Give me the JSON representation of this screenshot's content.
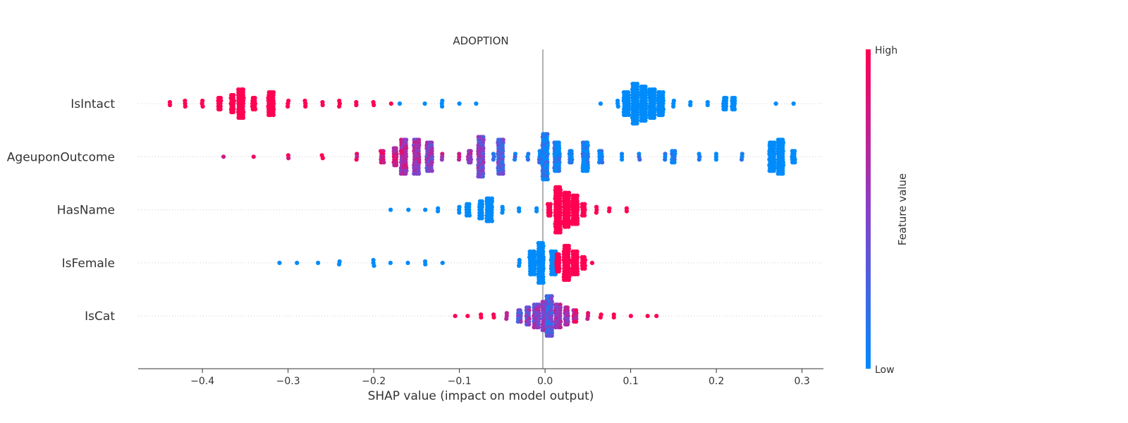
{
  "chart_data": {
    "type": "scatter",
    "subtype": "beeswarm",
    "title": "ADOPTION",
    "xlabel": "SHAP value (impact on model output)",
    "xlim": [
      -0.475,
      0.325
    ],
    "xticks": [
      -0.4,
      -0.3,
      -0.2,
      -0.1,
      0.0,
      0.1,
      0.2,
      0.3
    ],
    "xtick_labels": [
      "−0.4",
      "−0.3",
      "−0.2",
      "−0.1",
      "0.0",
      "0.1",
      "0.2",
      "0.3"
    ],
    "features": [
      "IsIntact",
      "AgeuponOutcome",
      "HasName",
      "IsFemale",
      "IsCat"
    ],
    "colorbar": {
      "label": "Feature value",
      "high_label": "High",
      "low_label": "Low",
      "high_color": "#ff0052",
      "low_color": "#008bfb",
      "mid_color": "#8a3fc8"
    },
    "series": [
      {
        "name": "IsIntact",
        "groups": [
          {
            "x": -0.438,
            "value": 1,
            "count": 2
          },
          {
            "x": -0.42,
            "value": 1,
            "count": 3
          },
          {
            "x": -0.4,
            "value": 1,
            "count": 3
          },
          {
            "x": -0.38,
            "value": 1,
            "count": 5
          },
          {
            "x": -0.365,
            "value": 1,
            "count": 7
          },
          {
            "x": -0.355,
            "value": 1,
            "count": 11
          },
          {
            "x": -0.34,
            "value": 1,
            "count": 5
          },
          {
            "x": -0.32,
            "value": 1,
            "count": 9
          },
          {
            "x": -0.3,
            "value": 1,
            "count": 3
          },
          {
            "x": -0.28,
            "value": 1,
            "count": 3
          },
          {
            "x": -0.26,
            "value": 1,
            "count": 2
          },
          {
            "x": -0.24,
            "value": 1,
            "count": 3
          },
          {
            "x": -0.22,
            "value": 1,
            "count": 2
          },
          {
            "x": -0.2,
            "value": 1,
            "count": 2
          },
          {
            "x": -0.18,
            "value": 1,
            "count": 1
          },
          {
            "x": -0.17,
            "value": 0,
            "count": 1
          },
          {
            "x": -0.14,
            "value": 0,
            "count": 1
          },
          {
            "x": -0.12,
            "value": 0,
            "count": 3
          },
          {
            "x": -0.1,
            "value": 0,
            "count": 1
          },
          {
            "x": -0.08,
            "value": 0,
            "count": 1
          },
          {
            "x": 0.065,
            "value": 0,
            "count": 1
          },
          {
            "x": 0.085,
            "value": 0,
            "count": 3
          },
          {
            "x": 0.095,
            "value": 0,
            "count": 9
          },
          {
            "x": 0.105,
            "value": 0,
            "count": 15
          },
          {
            "x": 0.115,
            "value": 0,
            "count": 13
          },
          {
            "x": 0.125,
            "value": 0,
            "count": 11
          },
          {
            "x": 0.135,
            "value": 0,
            "count": 9
          },
          {
            "x": 0.15,
            "value": 0,
            "count": 3
          },
          {
            "x": 0.17,
            "value": 0,
            "count": 2
          },
          {
            "x": 0.19,
            "value": 0,
            "count": 2
          },
          {
            "x": 0.21,
            "value": 0,
            "count": 5
          },
          {
            "x": 0.22,
            "value": 0,
            "count": 5
          },
          {
            "x": 0.27,
            "value": 0,
            "count": 1
          },
          {
            "x": 0.29,
            "value": 0,
            "count": 1
          }
        ]
      },
      {
        "name": "AgeuponOutcome",
        "groups": [
          {
            "x": -0.375,
            "value": 0.95,
            "count": 1
          },
          {
            "x": -0.34,
            "value": 0.95,
            "count": 1
          },
          {
            "x": -0.3,
            "value": 0.95,
            "count": 2
          },
          {
            "x": -0.26,
            "value": 0.92,
            "count": 2
          },
          {
            "x": -0.22,
            "value": 0.9,
            "count": 3
          },
          {
            "x": -0.19,
            "value": 0.88,
            "count": 5
          },
          {
            "x": -0.175,
            "value": 0.8,
            "count": 7
          },
          {
            "x": -0.165,
            "value": 0.7,
            "count": 13
          },
          {
            "x": -0.15,
            "value": 0.6,
            "count": 13
          },
          {
            "x": -0.135,
            "value": 0.5,
            "count": 11
          },
          {
            "x": -0.12,
            "value": 0.7,
            "count": 3
          },
          {
            "x": -0.1,
            "value": 0.8,
            "count": 3
          },
          {
            "x": -0.088,
            "value": 0.55,
            "count": 5
          },
          {
            "x": -0.075,
            "value": 0.45,
            "count": 15
          },
          {
            "x": -0.06,
            "value": 0.2,
            "count": 3
          },
          {
            "x": -0.052,
            "value": 0.3,
            "count": 13
          },
          {
            "x": -0.035,
            "value": 0.1,
            "count": 3
          },
          {
            "x": -0.02,
            "value": 0.08,
            "count": 3
          },
          {
            "x": -0.005,
            "value": 0.05,
            "count": 5
          },
          {
            "x": 0.0,
            "value": 0.05,
            "count": 17
          },
          {
            "x": 0.014,
            "value": 0.03,
            "count": 11
          },
          {
            "x": 0.03,
            "value": 0.02,
            "count": 5
          },
          {
            "x": 0.047,
            "value": 0.02,
            "count": 11
          },
          {
            "x": 0.065,
            "value": 0.02,
            "count": 5
          },
          {
            "x": 0.09,
            "value": 0.02,
            "count": 3
          },
          {
            "x": 0.11,
            "value": 0.02,
            "count": 3
          },
          {
            "x": 0.14,
            "value": 0.02,
            "count": 3
          },
          {
            "x": 0.15,
            "value": 0.02,
            "count": 5
          },
          {
            "x": 0.18,
            "value": 0.02,
            "count": 3
          },
          {
            "x": 0.2,
            "value": 0.02,
            "count": 3
          },
          {
            "x": 0.23,
            "value": 0.02,
            "count": 3
          },
          {
            "x": 0.265,
            "value": 0.0,
            "count": 11
          },
          {
            "x": 0.275,
            "value": 0.0,
            "count": 13
          },
          {
            "x": 0.29,
            "value": 0.0,
            "count": 5
          }
        ]
      },
      {
        "name": "HasName",
        "groups": [
          {
            "x": -0.18,
            "value": 0,
            "count": 1
          },
          {
            "x": -0.16,
            "value": 0,
            "count": 1
          },
          {
            "x": -0.14,
            "value": 0,
            "count": 1
          },
          {
            "x": -0.125,
            "value": 0,
            "count": 2
          },
          {
            "x": -0.1,
            "value": 0,
            "count": 3
          },
          {
            "x": -0.09,
            "value": 0,
            "count": 5
          },
          {
            "x": -0.075,
            "value": 0,
            "count": 7
          },
          {
            "x": -0.065,
            "value": 0,
            "count": 9
          },
          {
            "x": -0.05,
            "value": 0,
            "count": 3
          },
          {
            "x": -0.03,
            "value": 0,
            "count": 2
          },
          {
            "x": -0.01,
            "value": 0,
            "count": 2
          },
          {
            "x": 0.005,
            "value": 1,
            "count": 5
          },
          {
            "x": 0.015,
            "value": 1,
            "count": 17
          },
          {
            "x": 0.025,
            "value": 1,
            "count": 13
          },
          {
            "x": 0.035,
            "value": 1,
            "count": 11
          },
          {
            "x": 0.045,
            "value": 1,
            "count": 5
          },
          {
            "x": 0.06,
            "value": 1,
            "count": 3
          },
          {
            "x": 0.075,
            "value": 1,
            "count": 2
          },
          {
            "x": 0.095,
            "value": 1,
            "count": 2
          }
        ]
      },
      {
        "name": "IsFemale",
        "groups": [
          {
            "x": -0.31,
            "value": 0,
            "count": 1
          },
          {
            "x": -0.29,
            "value": 0,
            "count": 1
          },
          {
            "x": -0.265,
            "value": 0,
            "count": 1
          },
          {
            "x": -0.24,
            "value": 0,
            "count": 2
          },
          {
            "x": -0.2,
            "value": 0,
            "count": 3
          },
          {
            "x": -0.18,
            "value": 0,
            "count": 1
          },
          {
            "x": -0.16,
            "value": 0,
            "count": 1
          },
          {
            "x": -0.14,
            "value": 0,
            "count": 2
          },
          {
            "x": -0.12,
            "value": 0,
            "count": 1
          },
          {
            "x": -0.03,
            "value": 0,
            "count": 3
          },
          {
            "x": -0.015,
            "value": 0,
            "count": 9
          },
          {
            "x": -0.005,
            "value": 0,
            "count": 15
          },
          {
            "x": 0.01,
            "value": 0,
            "count": 9
          },
          {
            "x": 0.015,
            "value": 1,
            "count": 7
          },
          {
            "x": 0.025,
            "value": 1,
            "count": 13
          },
          {
            "x": 0.035,
            "value": 1,
            "count": 9
          },
          {
            "x": 0.045,
            "value": 1,
            "count": 5
          },
          {
            "x": 0.055,
            "value": 1,
            "count": 1
          }
        ]
      },
      {
        "name": "IsCat",
        "groups": [
          {
            "x": -0.105,
            "value": 1,
            "count": 1
          },
          {
            "x": -0.09,
            "value": 1,
            "count": 1
          },
          {
            "x": -0.075,
            "value": 1,
            "count": 2
          },
          {
            "x": -0.06,
            "value": 0.9,
            "count": 2
          },
          {
            "x": -0.045,
            "value": 0.6,
            "count": 3
          },
          {
            "x": -0.03,
            "value": 0.4,
            "count": 5
          },
          {
            "x": -0.02,
            "value": 0.5,
            "count": 7
          },
          {
            "x": -0.01,
            "value": 0.5,
            "count": 9
          },
          {
            "x": 0.0,
            "value": 0.5,
            "count": 11
          },
          {
            "x": 0.005,
            "value": 0.3,
            "count": 15
          },
          {
            "x": 0.015,
            "value": 0.6,
            "count": 9
          },
          {
            "x": 0.025,
            "value": 0.6,
            "count": 7
          },
          {
            "x": 0.035,
            "value": 0.8,
            "count": 5
          },
          {
            "x": 0.05,
            "value": 0.9,
            "count": 3
          },
          {
            "x": 0.065,
            "value": 1,
            "count": 2
          },
          {
            "x": 0.08,
            "value": 1,
            "count": 2
          },
          {
            "x": 0.1,
            "value": 1,
            "count": 1
          },
          {
            "x": 0.12,
            "value": 1,
            "count": 1
          },
          {
            "x": 0.13,
            "value": 1,
            "count": 1
          }
        ]
      }
    ]
  }
}
